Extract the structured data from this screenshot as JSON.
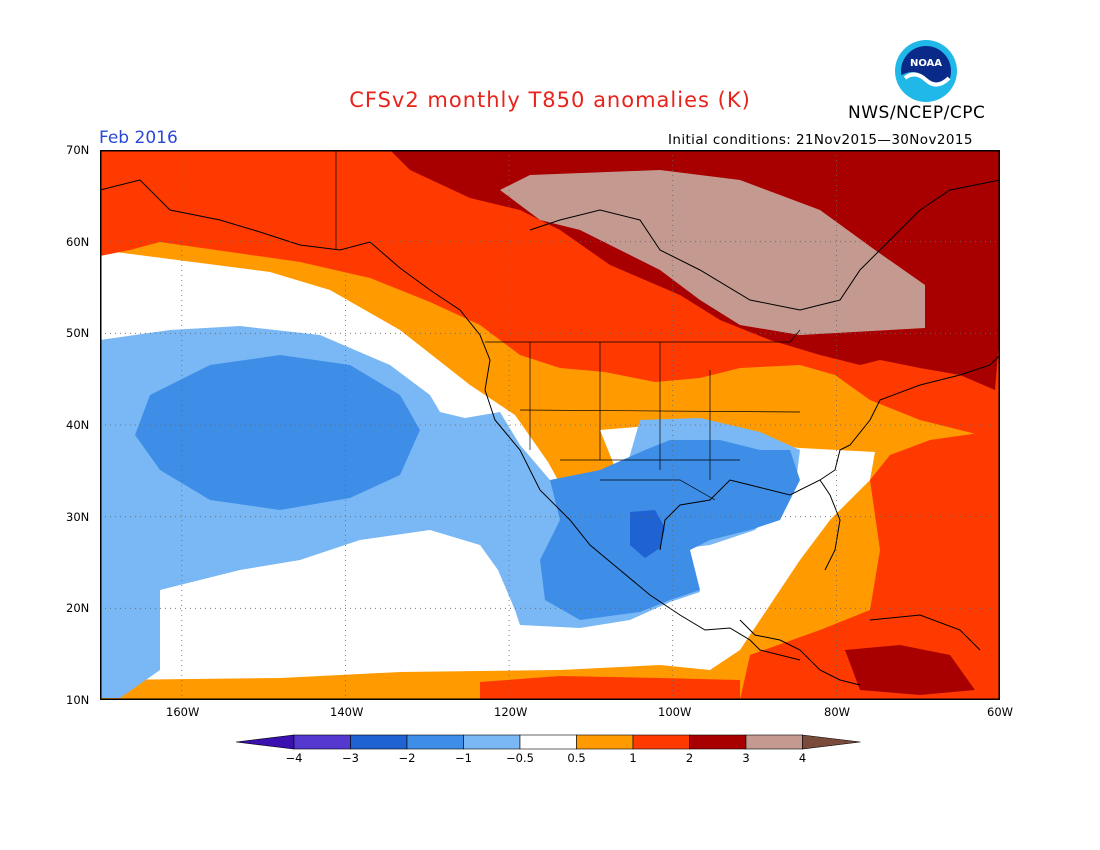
{
  "header": {
    "title": "CFSv2 monthly T850 anomalies (K)",
    "agency": "NWS/NCEP/CPC",
    "logo_text": "NOAA",
    "month_label": "Feb 2016",
    "initial_conditions": "Initial conditions: 21Nov2015—30Nov2015"
  },
  "map": {
    "lat_labels": [
      "70N",
      "60N",
      "50N",
      "40N",
      "30N",
      "20N",
      "10N"
    ],
    "lon_labels": [
      "160W",
      "140W",
      "120W",
      "100W",
      "80W",
      "60W"
    ],
    "lat_range": [
      10,
      70
    ],
    "lon_range": [
      -170,
      -60
    ]
  },
  "colorbar": {
    "tick_labels": [
      "−4",
      "−3",
      "−2",
      "−1",
      "−0.5",
      "0.5",
      "1",
      "2",
      "3",
      "4"
    ],
    "colors": [
      "#3a10b0",
      "#5538d0",
      "#1f62d2",
      "#3e8ee8",
      "#7ab8f5",
      "#ffffff",
      "#ff9b00",
      "#ff3a00",
      "#a80000",
      "#c49a90",
      "#7a4a3a"
    ]
  }
}
